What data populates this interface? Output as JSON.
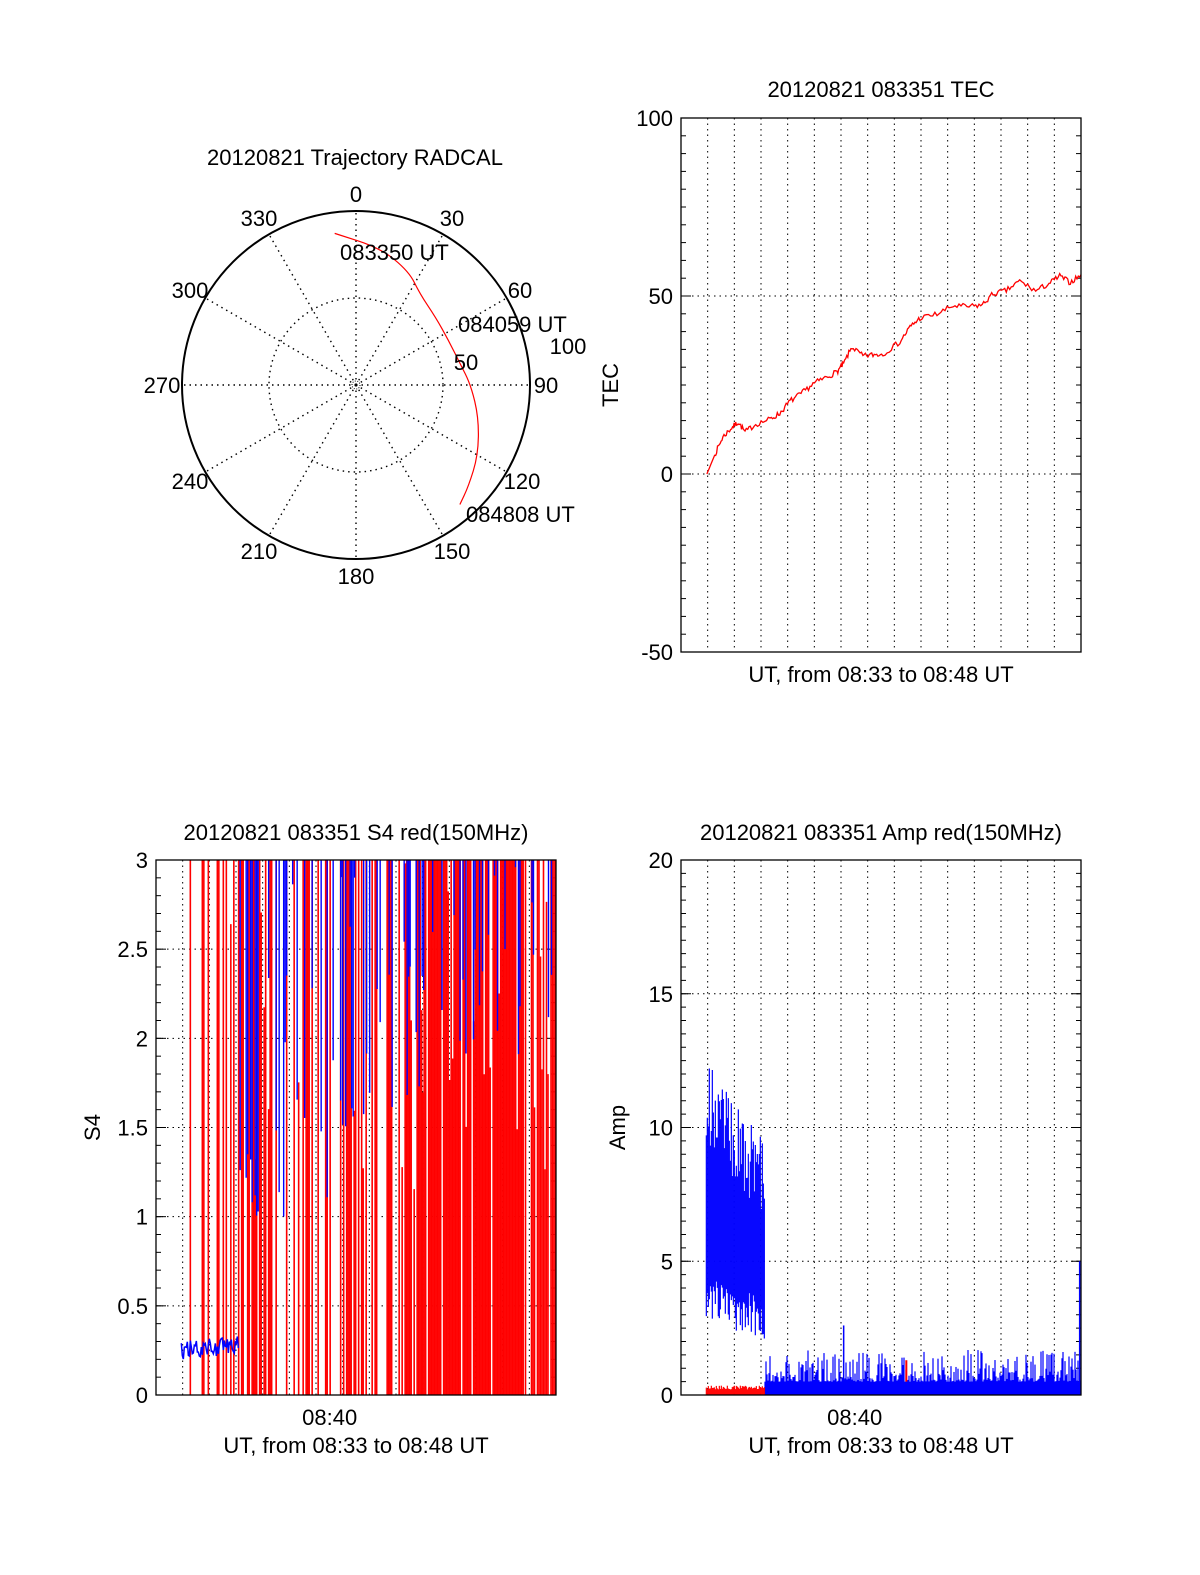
{
  "colors": {
    "red": "#ff0000",
    "blue": "#0000ff",
    "axis": "#000000"
  },
  "chart_data": [
    {
      "type": "polar",
      "title": "20120821 Trajectory RADCAL",
      "angle_labels": [
        "0",
        "30",
        "60",
        "90",
        "120",
        "150",
        "180",
        "210",
        "240",
        "270",
        "300",
        "330"
      ],
      "radius_labels": [
        "50",
        "100"
      ],
      "rlim": [
        0,
        100
      ],
      "grid": true,
      "trajectory": {
        "color": "red",
        "points_az_r": [
          [
            352,
            88
          ],
          [
            10,
            80
          ],
          [
            25,
            72
          ],
          [
            35,
            64
          ],
          [
            50,
            60
          ],
          [
            64,
            59
          ],
          [
            78,
            61
          ],
          [
            90,
            66
          ],
          [
            105,
            73
          ],
          [
            120,
            81
          ],
          [
            132,
            87
          ],
          [
            139,
            91
          ]
        ]
      },
      "annotations": [
        {
          "text": "083350 UT",
          "az": 352,
          "r": 88
        },
        {
          "text": "084059 UT",
          "az": 64,
          "r": 59
        },
        {
          "text": "084808 UT",
          "az": 139,
          "r": 91
        }
      ]
    },
    {
      "type": "line",
      "title": "20120821 083351 TEC",
      "xlabel": "UT, from 08:33 to 08:48 UT",
      "ylabel": "TEC",
      "xlim_minutes_after_0833": [
        0,
        15
      ],
      "ylim": [
        -50,
        100
      ],
      "yticks": [
        "-50",
        "0",
        "50",
        "100"
      ],
      "grid": true,
      "series": [
        {
          "name": "TEC",
          "color": "red",
          "x": [
            0.97,
            1.3,
            1.57,
            1.9,
            2.14,
            2.4,
            2.8,
            3.34,
            3.7,
            4.09,
            4.5,
            4.95,
            5.4,
            5.85,
            6.1,
            6.41,
            6.82,
            7.2,
            7.57,
            8.21,
            8.59,
            8.96,
            9.6,
            10.2,
            10.8,
            11.3,
            11.7,
            12.2,
            12.7,
            13.3,
            13.8,
            14.2,
            14.6,
            15.0
          ],
          "y": [
            0,
            6,
            10.4,
            13,
            14.6,
            11.8,
            14,
            15.4,
            17,
            20.5,
            22.5,
            25.3,
            27,
            28.7,
            31,
            35.7,
            33.1,
            33.5,
            33.7,
            37.1,
            41.3,
            43.8,
            44.9,
            47.2,
            47,
            47.5,
            50.6,
            51.5,
            54.2,
            51.4,
            53.5,
            55.6,
            53.8,
            56
          ]
        }
      ]
    },
    {
      "type": "line",
      "title": "20120821 083351 S4 red(150MHz)",
      "xlabel": "UT, from 08:33 to 08:48 UT",
      "ylabel": "S4",
      "xtick_labels": [
        "08:40"
      ],
      "xtick_minutes_after_0833": [
        7
      ],
      "xlim_minutes_after_0833": [
        0,
        15
      ],
      "ylim": [
        0,
        3
      ],
      "yticks": [
        "0",
        "0.5",
        "1",
        "1.5",
        "2",
        "2.5",
        "3"
      ],
      "grid": true,
      "series": [
        {
          "name": "red",
          "color": "red",
          "description_segments": [
            [
              0.95,
              3.1,
              0.35
            ],
            [
              3.1,
              10.0,
              0.5
            ],
            [
              10.0,
              13.8,
              0.9
            ],
            [
              13.8,
              15.0,
              0.55
            ]
          ]
        },
        {
          "name": "blue",
          "color": "blue",
          "baseline": {
            "x_range": [
              0.95,
              3.1
            ],
            "y_range": [
              0.2,
              0.3
            ]
          },
          "segments": [
            [
              3.1,
              4.0,
              1.0,
              1.5
            ],
            [
              4.0,
              7.0,
              1.0,
              3.0
            ],
            [
              7.0,
              10.5,
              1.5,
              3.0
            ],
            [
              10.5,
              15.0,
              1.8,
              3.0
            ]
          ]
        }
      ]
    },
    {
      "type": "line",
      "title": "20120821 083351 Amp red(150MHz)",
      "xlabel": "UT, from 08:33 to 08:48 UT",
      "ylabel": "Amp",
      "xtick_labels": [
        "08:40"
      ],
      "xtick_minutes_after_0833": [
        7
      ],
      "xlim_minutes_after_0833": [
        0,
        15
      ],
      "ylim": [
        0,
        20
      ],
      "yticks": [
        "0",
        "5",
        "10",
        "15",
        "20"
      ],
      "grid": true,
      "series": [
        {
          "name": "blue",
          "color": "blue",
          "segments": [
            [
              0.95,
              3.15,
              2.0,
              11.5
            ],
            [
              3.15,
              15.0,
              0.0,
              1.5
            ]
          ],
          "spikes": [
            [
              6.1,
              2.6
            ],
            [
              14.95,
              5.0
            ]
          ]
        },
        {
          "name": "red",
          "color": "red",
          "segments": [
            [
              0.95,
              3.15,
              0.0,
              0.35
            ]
          ],
          "spikes": [
            [
              8.45,
              1.3
            ]
          ]
        }
      ]
    }
  ]
}
